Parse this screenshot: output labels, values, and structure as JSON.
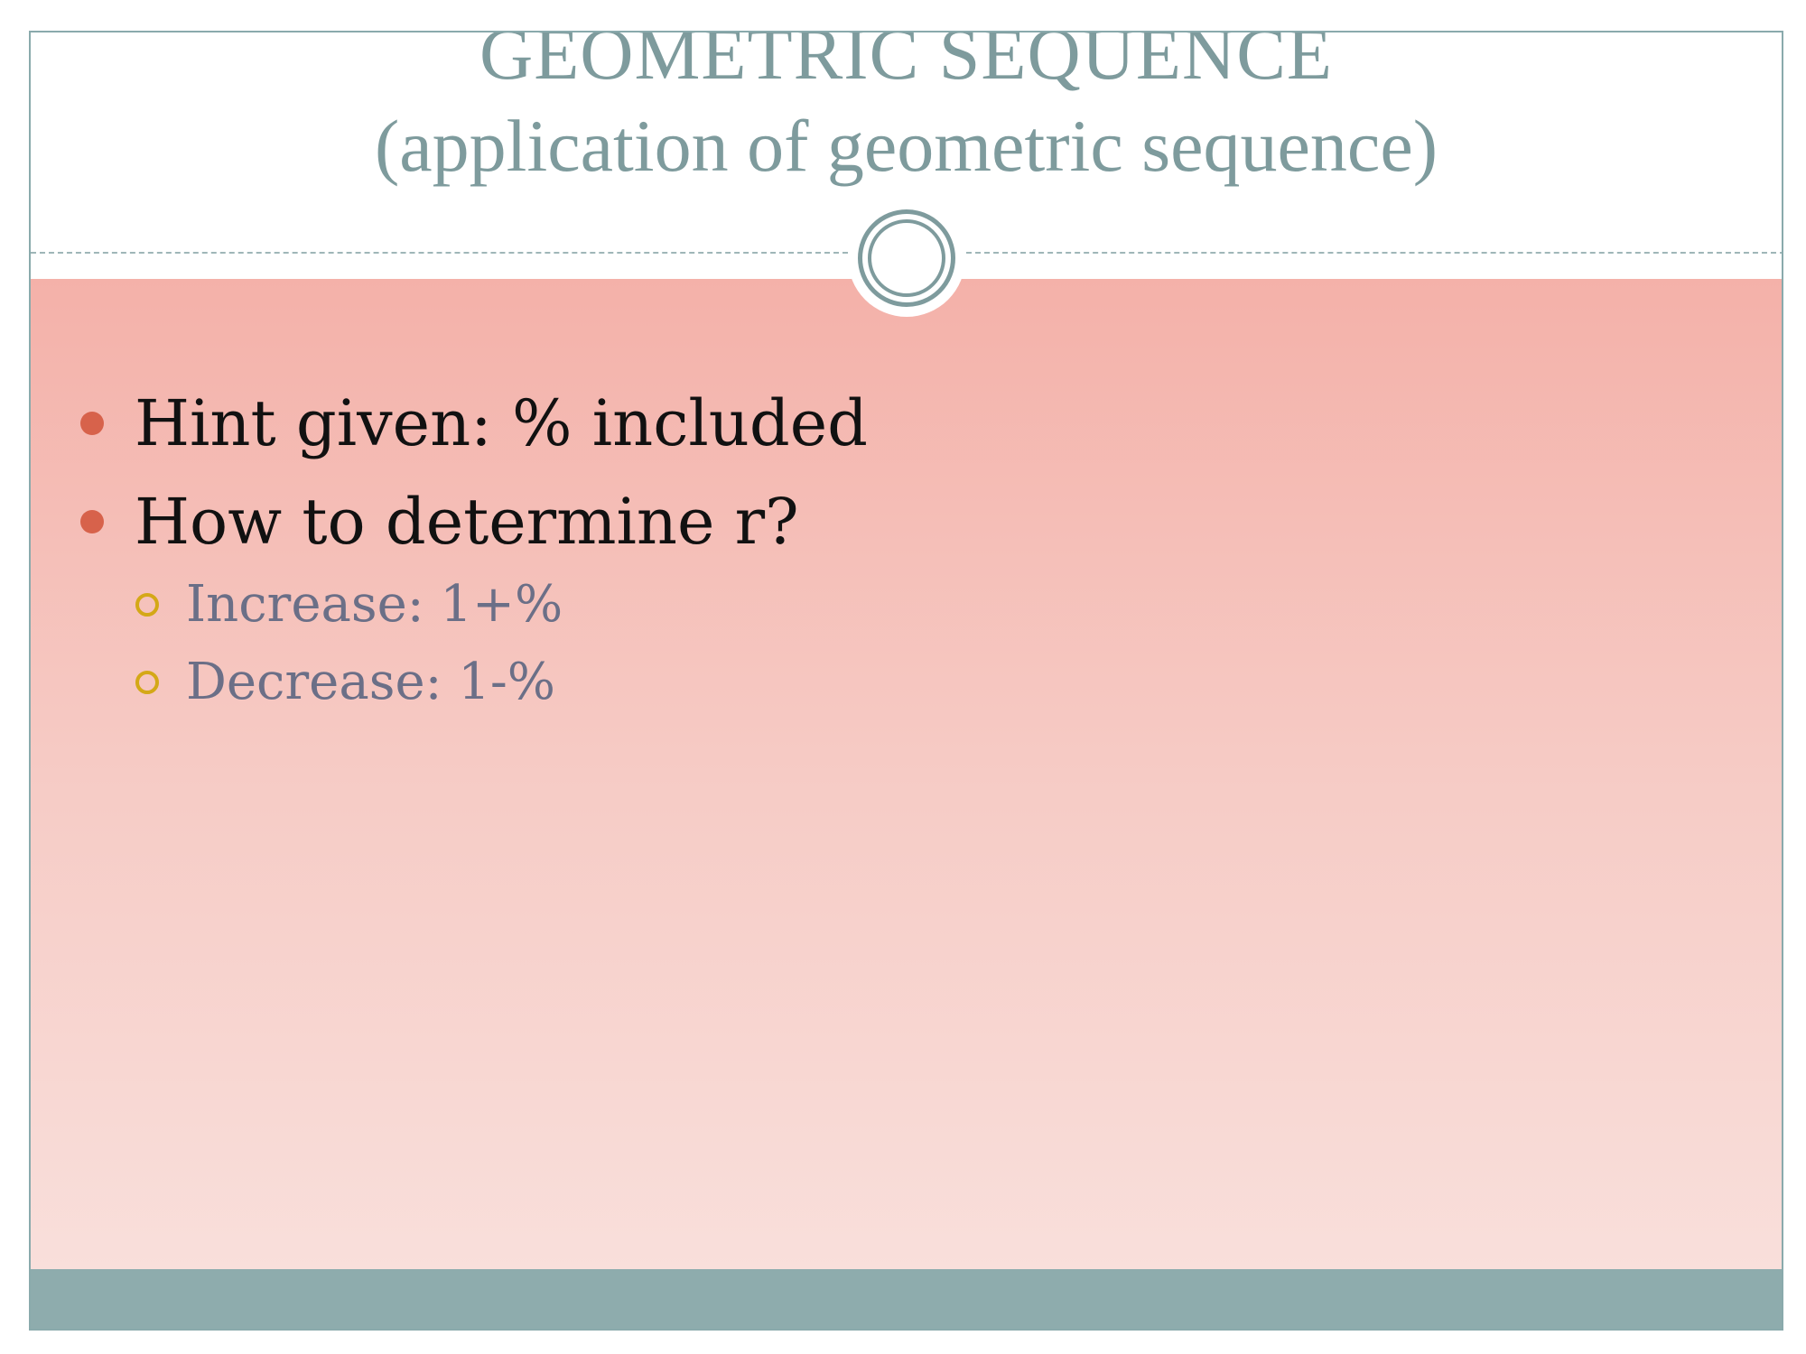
{
  "slide": {
    "title_line1": "GEOMETRIC SEQUENCE",
    "title_line2": "(application of geometric sequence)",
    "bullets": [
      {
        "text": "Hint given: % included"
      },
      {
        "text": "How to determine r?"
      }
    ],
    "sub_bullets": [
      {
        "text": "Increase: 1+%"
      },
      {
        "text": "Decrease: 1-%"
      }
    ]
  },
  "colors": {
    "title": "#7e9b9d",
    "content_top": "#f4b1a9",
    "content_bottom": "#f9dfdb",
    "footer": "#8eacad",
    "bullet": "#d7624b",
    "sub_bullet": "#d4a817",
    "sub_text": "#6b6f87"
  },
  "icons": {
    "bullet": "filled-circle",
    "sub_bullet": "hollow-circle",
    "title_ornament": "double-ring"
  }
}
